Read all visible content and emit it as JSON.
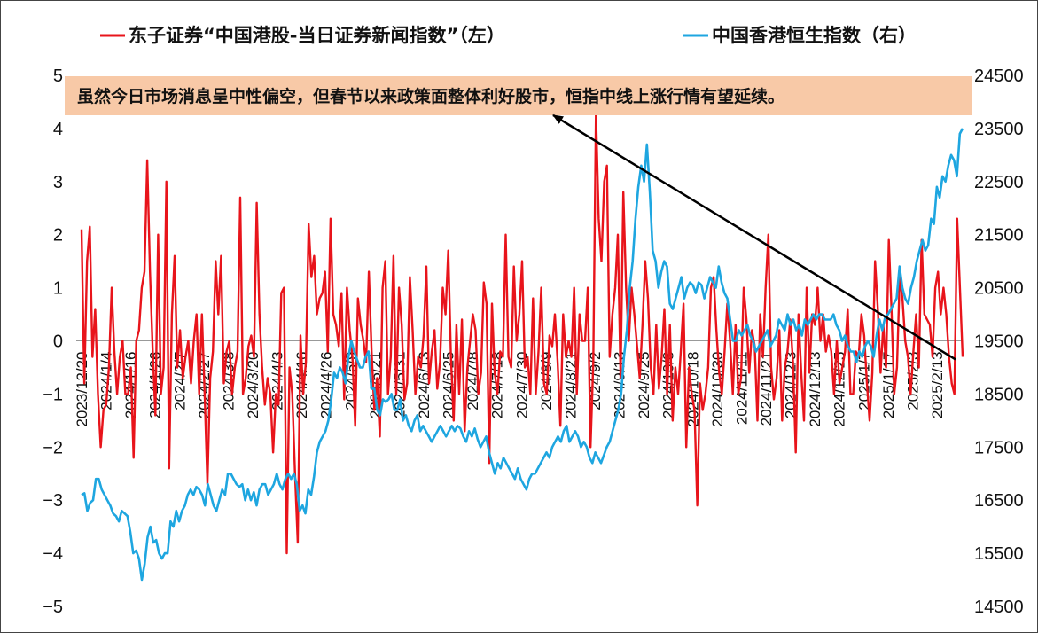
{
  "chart_data": {
    "type": "line",
    "title": "",
    "legend": [
      {
        "name": "东子证券“中国港股-当日证券新闻指数”（左）",
        "color": "#e8141b"
      },
      {
        "name": "中国香港恒生指数（右）",
        "color": "#1ea6e0"
      }
    ],
    "legend_position": "top",
    "annotation": "虽然今日市场消息呈中性偏空，但春节以来政策面整体利好股市，恒指中线上涨行情有望延续。",
    "annotation_bg": "#f8c9a7",
    "y_left": {
      "ylim": [
        -5,
        5
      ],
      "ticks": [
        "5",
        "4",
        "3",
        "2",
        "1",
        "0",
        "−1",
        "−2",
        "−3",
        "−4",
        "−5"
      ]
    },
    "y_right": {
      "ylim": [
        14500,
        24500
      ],
      "ticks": [
        "24500",
        "23500",
        "22500",
        "21500",
        "20500",
        "19500",
        "18500",
        "17500",
        "16500",
        "15500",
        "14500"
      ]
    },
    "x_tick_labels": [
      "2023/12/20",
      "2024/1/4",
      "2024/1/16",
      "2024/1/26",
      "2024/2/7",
      "2024/2/27",
      "2024/3/8",
      "2024/3/20",
      "2024/4/3",
      "2024/4/16",
      "2024/4/26",
      "2024/5/9",
      "2024/5/21",
      "2024/5/31",
      "2024/6/13",
      "2024/6/25",
      "2024/7/8",
      "2024/7/18",
      "2024/7/30",
      "2024/8/9",
      "2024/8/21",
      "2024/9/2",
      "2024/9/13",
      "2024/9/25",
      "2024/10/8",
      "2024/10/18",
      "2024/10/30",
      "2024/11/11",
      "2024/11/21",
      "2024/12/3",
      "2024/12/13",
      "2024/12/25",
      "2025/1/7",
      "2025/1/17",
      "2025/2/3",
      "2025/2/13"
    ],
    "series": [
      {
        "name": "东子证券“中国港股-当日证券新闻指数”（左）",
        "axis": "left",
        "color": "#e8141b",
        "values": [
          2.1,
          -0.8,
          1.5,
          2.15,
          -0.3,
          0.6,
          -1.0,
          -2.0,
          -1.3,
          -1.2,
          -0.5,
          1.0,
          -0.2,
          -1.0,
          -0.3,
          0.0,
          -1.0,
          -1.0,
          -0.5,
          -2.2,
          0.0,
          0.2,
          1.0,
          1.3,
          3.4,
          1.3,
          -0.2,
          -1.4,
          2.0,
          -1.0,
          -0.5,
          3.0,
          -2.4,
          0.5,
          1.6,
          -0.5,
          0.2,
          -0.7,
          -0.3,
          0.0,
          -0.8,
          0.0,
          0.5,
          -1.0,
          0.5,
          -1.0,
          -2.7,
          -0.7,
          -0.2,
          1.5,
          0.5,
          1.6,
          -0.8,
          -0.2,
          0.0,
          -1.0,
          -0.5,
          -0.2,
          2.7,
          -1.0,
          -0.7,
          -0.1,
          0.1,
          -0.3,
          2.6,
          0.5,
          -0.5,
          -1.2,
          -0.7,
          -1.0,
          -2.1,
          -1.0,
          -1.2,
          0.9,
          1.0,
          -4.0,
          -0.5,
          -1.0,
          -2.5,
          -3.8,
          0.1,
          -1.0,
          -0.4,
          2.2,
          1.2,
          1.6,
          0.5,
          0.8,
          0.9,
          1.3,
          -0.2,
          2.3,
          0.5,
          0.3,
          -0.1,
          0.9,
          -1.1,
          1.0,
          0.2,
          -0.3,
          -1.6,
          0.8,
          0.3,
          0.0,
          -0.4,
          1.3,
          -0.2,
          -1.3,
          -0.7,
          -1.8,
          1.0,
          1.5,
          -1.0,
          -0.3,
          1.6,
          -1.0,
          1.0,
          0.3,
          -1.1,
          -0.8,
          1.2,
          0.2,
          -1.0,
          -0.3,
          -0.5,
          0.1,
          1.4,
          -0.8,
          -0.2,
          0.2,
          -0.9,
          -0.4,
          1.0,
          0.5,
          1.7,
          -0.3,
          -1.5,
          0.3,
          -1.0,
          0.4,
          -1.7,
          -0.5,
          0.0,
          0.5,
          0.2,
          -1.0,
          -0.6,
          1.1,
          0.7,
          -2.3,
          0.7,
          -0.6,
          -1.0,
          -0.2,
          -0.3,
          2.0,
          -0.3,
          -0.5,
          1.4,
          0.0,
          0.5,
          1.5,
          -0.5,
          -0.3,
          -1.0,
          0.8,
          -1.0,
          -0.2,
          1.0,
          -0.8,
          -1.0,
          0.1,
          -0.1,
          0.5,
          -0.4,
          -1.6,
          0.5,
          -0.3,
          0.0,
          -0.3,
          1.0,
          -1.0,
          0.5,
          0.0,
          0.0,
          1.0,
          -2.0,
          -0.4,
          4.3,
          2.3,
          1.5,
          3.0,
          3.3,
          -0.3,
          0.5,
          1.0,
          2.0,
          -0.7,
          2.8,
          1.0,
          0.0,
          1.0,
          0.5,
          -0.1,
          -0.7,
          0.3,
          1.5,
          0.8,
          -0.5,
          -1.0,
          0.3,
          -0.9,
          -0.3,
          0.6,
          -1.0,
          0.3,
          -1.5,
          -0.5,
          -1.0,
          -0.2,
          0.7,
          -2.0,
          -0.5,
          -1.0,
          -1.3,
          -3.1,
          -0.8,
          -1.3,
          -1.0,
          -0.5,
          1.0,
          1.2,
          0.2,
          -0.6,
          -1.0,
          -0.2,
          0.7,
          0.0,
          -1.0,
          0.3,
          -1.0,
          -0.7,
          1.0,
          0.4,
          -0.6,
          0.2,
          -0.1,
          -1.5,
          0.5,
          -0.3,
          1.0,
          2.0,
          -0.5,
          -1.1,
          -0.7,
          0.2,
          -1.5,
          -0.5,
          -0.2,
          0.4,
          -0.4,
          -2.1,
          0.5,
          -0.6,
          -1.5,
          1.0,
          -0.6,
          0.5,
          0.3,
          1.0,
          0.0,
          0.5,
          -0.2,
          0.1,
          -0.2,
          -1.0,
          0.0,
          -0.8,
          -0.5,
          -0.2,
          0.6,
          -1.0,
          -1.0,
          -0.2,
          -0.3,
          0.5,
          0.1,
          -0.8,
          -1.5,
          -0.6,
          1.5,
          0.6,
          -0.6,
          0.3,
          -0.5,
          1.9,
          0.6,
          -1.0,
          -0.5,
          1.2,
          0.8,
          0.0,
          -0.3,
          -1.0,
          -0.2,
          0.5,
          -0.5,
          1.9,
          0.5,
          0.4,
          0.3,
          -0.3,
          1.0,
          1.3,
          0.5,
          1.0,
          0.5,
          -0.3,
          -0.8,
          -1.0,
          2.3,
          1.0,
          -0.3
        ]
      },
      {
        "name": "中国香港恒生指数（右）",
        "axis": "right",
        "color": "#1ea6e0",
        "values": [
          16600,
          16630,
          16300,
          16450,
          16500,
          16900,
          16900,
          16700,
          16600,
          16500,
          16400,
          16250,
          16200,
          16100,
          16300,
          16250,
          16200,
          15900,
          15500,
          15550,
          15400,
          15000,
          15300,
          15800,
          16000,
          15700,
          15750,
          15500,
          15400,
          15500,
          15500,
          16100,
          16000,
          16300,
          16100,
          16300,
          16400,
          16600,
          16700,
          16600,
          16750,
          16700,
          16600,
          16400,
          16800,
          16600,
          16400,
          16300,
          16500,
          16700,
          16600,
          17000,
          17000,
          16900,
          16800,
          16750,
          16800,
          16500,
          16700,
          16500,
          16650,
          16400,
          16700,
          16800,
          16800,
          16600,
          16700,
          16800,
          17000,
          16800,
          16700,
          16900,
          17000,
          16900,
          17000,
          16800,
          16300,
          16400,
          16250,
          16700,
          16600,
          16950,
          17400,
          17600,
          17700,
          17800,
          18000,
          18400,
          18900,
          18800,
          19000,
          18900,
          18700,
          19200,
          19500,
          19300,
          19150,
          19000,
          19000,
          19200,
          19300,
          18600,
          18600,
          18200,
          18100,
          18400,
          18350,
          18400,
          18500,
          18200,
          18200,
          18400,
          18000,
          18100,
          17900,
          17800,
          18000,
          18100,
          17800,
          17900,
          17800,
          17700,
          17600,
          17700,
          17800,
          17900,
          17800,
          17700,
          17800,
          17900,
          17800,
          17900,
          17850,
          17700,
          17600,
          17800,
          17700,
          17850,
          17650,
          17500,
          17600,
          17700,
          17400,
          17200,
          17000,
          17200,
          17100,
          17300,
          17200,
          17100,
          17000,
          16900,
          17100,
          16900,
          16800,
          16700,
          16900,
          17000,
          17000,
          17100,
          17200,
          17300,
          17400,
          17300,
          17500,
          17600,
          17700,
          17600,
          17800,
          17900,
          17600,
          17700,
          17800,
          17700,
          17500,
          17600,
          17500,
          17300,
          17200,
          17400,
          17300,
          17200,
          17350,
          17500,
          17600,
          17800,
          18000,
          18200,
          18500,
          19200,
          19700,
          20500,
          21000,
          21800,
          22400,
          22800,
          22500,
          23200,
          22300,
          21200,
          21000,
          20500,
          20800,
          21000,
          20900,
          20200,
          20100,
          20300,
          20500,
          20700,
          20300,
          20500,
          20600,
          20550,
          20400,
          20600,
          20550,
          20300,
          20500,
          20700,
          20600,
          20500,
          20900,
          20600,
          20400,
          20300,
          19900,
          19500,
          19500,
          19700,
          19600,
          19700,
          19800,
          19600,
          19500,
          19300,
          19400,
          19500,
          19600,
          19700,
          19400,
          19500,
          19600,
          19900,
          19800,
          19700,
          20000,
          19800,
          19900,
          19700,
          19800,
          19600,
          19900,
          19800,
          19900,
          20000,
          19900,
          20000,
          20000,
          19900,
          19900,
          19900,
          20000,
          19800,
          19700,
          19500,
          19600,
          19400,
          19300,
          19300,
          19100,
          19300,
          19200,
          19400,
          19500,
          19400,
          19200,
          19600,
          19900,
          19700,
          19950,
          20000,
          20100,
          20200,
          20300,
          20900,
          20500,
          20300,
          20200,
          20500,
          20700,
          21000,
          21200,
          21400,
          21200,
          21300,
          21800,
          21700,
          22400,
          22200,
          22600,
          22500,
          22800,
          23000,
          22900,
          22600,
          23400,
          23500
        ]
      }
    ],
    "arrow": {
      "from": {
        "x_frac": 0.992,
        "y_value": -0.35
      },
      "to": {
        "x_frac": 0.538,
        "y_value": 4.25
      }
    }
  }
}
